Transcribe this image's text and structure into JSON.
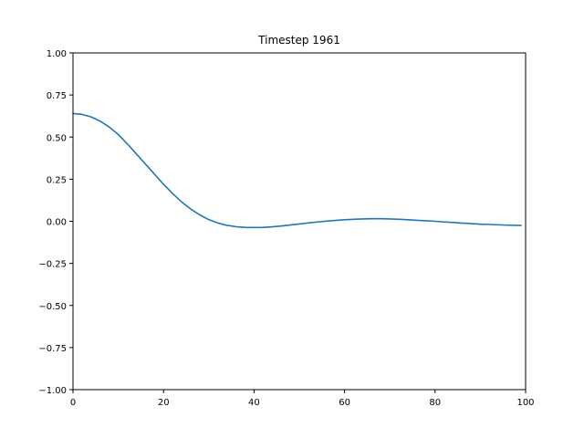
{
  "chart_data": {
    "type": "line",
    "title": "Timestep 1961",
    "xlabel": "",
    "ylabel": "",
    "xlim": [
      0,
      100
    ],
    "ylim": [
      -1.0,
      1.0
    ],
    "grid": false,
    "x_ticks": [
      0,
      20,
      40,
      60,
      80,
      100
    ],
    "x_tick_labels": [
      "0",
      "20",
      "40",
      "60",
      "80",
      "100"
    ],
    "y_ticks": [
      -1.0,
      -0.75,
      -0.5,
      -0.25,
      0.0,
      0.25,
      0.5,
      0.75,
      1.0
    ],
    "y_tick_labels": [
      "−1.00",
      "−0.75",
      "−0.50",
      "−0.25",
      "0.00",
      "0.25",
      "0.50",
      "0.75",
      "1.00"
    ],
    "series": [
      {
        "color": "#1f77b4",
        "x": [
          0,
          2,
          4,
          6,
          8,
          10,
          12,
          14,
          16,
          18,
          20,
          22,
          24,
          26,
          28,
          30,
          32,
          34,
          36,
          38,
          40,
          42,
          44,
          46,
          48,
          50,
          52,
          54,
          56,
          58,
          60,
          62,
          64,
          66,
          68,
          70,
          72,
          74,
          76,
          78,
          80,
          82,
          84,
          86,
          88,
          90,
          92,
          94,
          96,
          99
        ],
        "y": [
          0.64,
          0.635,
          0.62,
          0.595,
          0.56,
          0.515,
          0.46,
          0.4,
          0.34,
          0.28,
          0.22,
          0.165,
          0.115,
          0.073,
          0.038,
          0.01,
          -0.01,
          -0.024,
          -0.032,
          -0.036,
          -0.037,
          -0.036,
          -0.033,
          -0.028,
          -0.022,
          -0.016,
          -0.01,
          -0.004,
          0.001,
          0.005,
          0.009,
          0.012,
          0.014,
          0.015,
          0.015,
          0.014,
          0.012,
          0.009,
          0.006,
          0.003,
          0.0,
          -0.004,
          -0.007,
          -0.011,
          -0.014,
          -0.017,
          -0.019,
          -0.021,
          -0.023,
          -0.025
        ]
      }
    ]
  }
}
